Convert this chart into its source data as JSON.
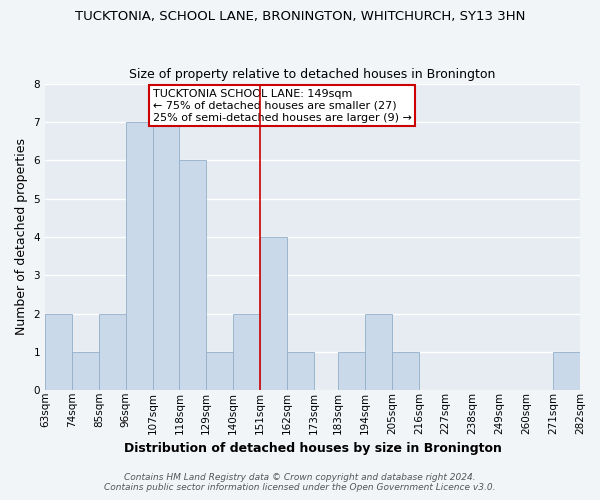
{
  "title": "TUCKTONIA, SCHOOL LANE, BRONINGTON, WHITCHURCH, SY13 3HN",
  "subtitle": "Size of property relative to detached houses in Bronington",
  "xlabel": "Distribution of detached houses by size in Bronington",
  "ylabel": "Number of detached properties",
  "bin_edges": [
    63,
    74,
    85,
    96,
    107,
    118,
    129,
    140,
    151,
    162,
    173,
    183,
    194,
    205,
    216,
    227,
    238,
    249,
    260,
    271,
    282
  ],
  "bin_labels": [
    "63sqm",
    "74sqm",
    "85sqm",
    "96sqm",
    "107sqm",
    "118sqm",
    "129sqm",
    "140sqm",
    "151sqm",
    "162sqm",
    "173sqm",
    "183sqm",
    "194sqm",
    "205sqm",
    "216sqm",
    "227sqm",
    "238sqm",
    "249sqm",
    "260sqm",
    "271sqm",
    "282sqm"
  ],
  "counts": [
    2,
    1,
    2,
    7,
    7,
    6,
    1,
    2,
    4,
    1,
    0,
    1,
    2,
    1,
    0,
    0,
    0,
    0,
    0,
    1
  ],
  "bar_color": "#c9d9ea",
  "bar_edge_color": "#92afc8",
  "reference_line_x": 151,
  "reference_line_color": "#cc0000",
  "annotation_title": "TUCKTONIA SCHOOL LANE: 149sqm",
  "annotation_line1": "← 75% of detached houses are smaller (27)",
  "annotation_line2": "25% of semi-detached houses are larger (9) →",
  "annotation_box_color": "#cc0000",
  "ylim": [
    0,
    8
  ],
  "yticks": [
    0,
    1,
    2,
    3,
    4,
    5,
    6,
    7,
    8
  ],
  "footer1": "Contains HM Land Registry data © Crown copyright and database right 2024.",
  "footer2": "Contains public sector information licensed under the Open Government Licence v3.0.",
  "bg_color": "#f2f5f8",
  "plot_bg_color": "#e6ecf2",
  "grid_color": "#ffffff",
  "title_fontsize": 9.5,
  "subtitle_fontsize": 9,
  "axis_label_fontsize": 9,
  "tick_fontsize": 7.5,
  "annotation_fontsize": 8,
  "footer_fontsize": 6.5
}
